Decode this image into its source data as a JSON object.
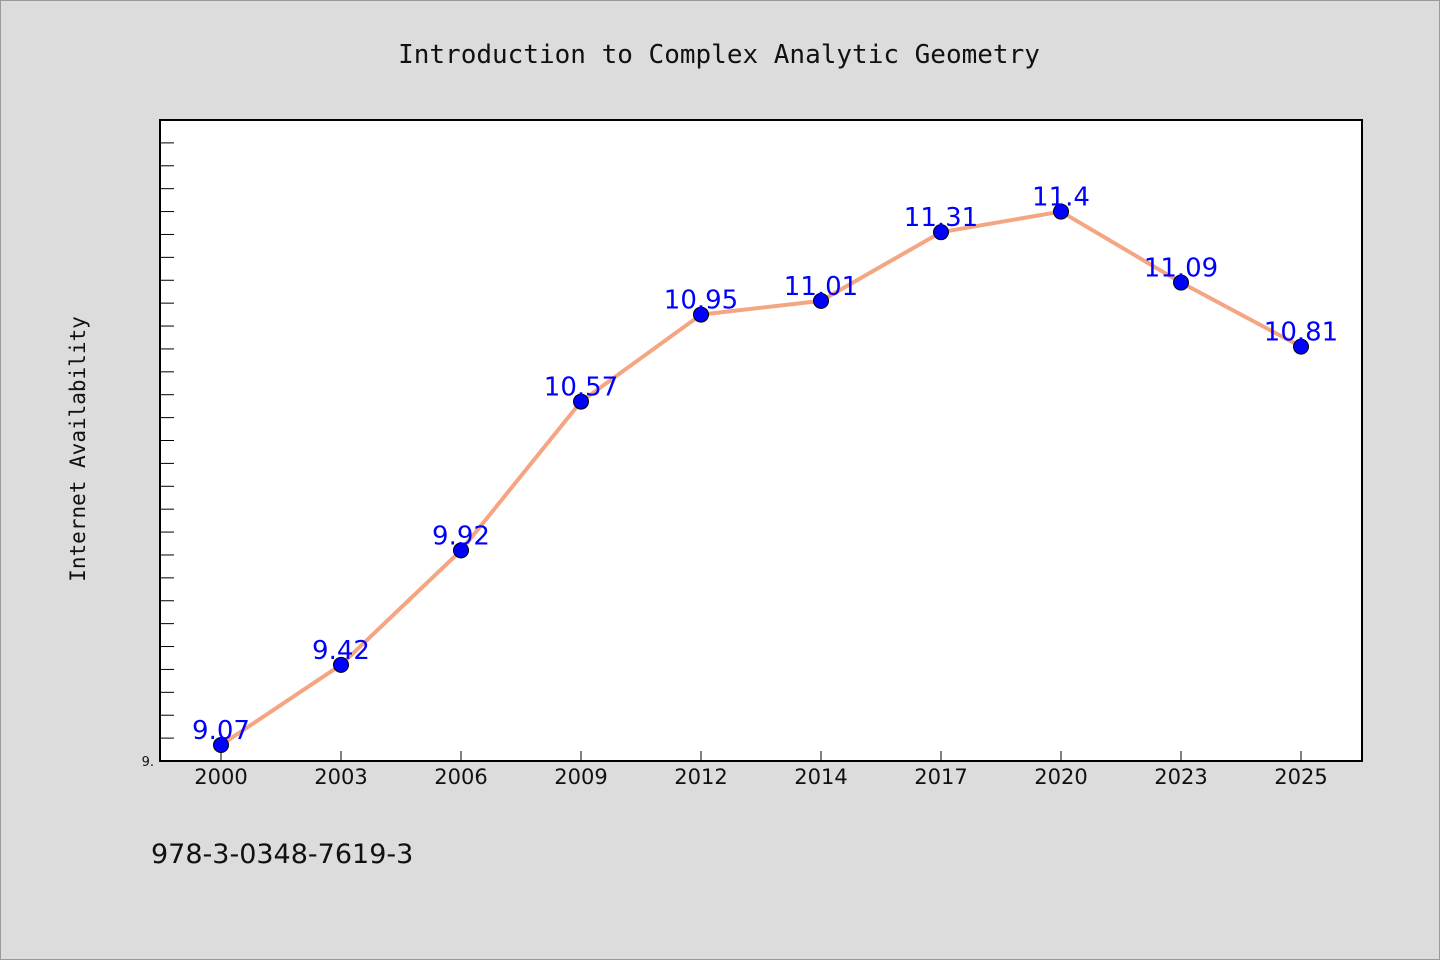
{
  "chart_data": {
    "type": "line",
    "title": "Introduction to Complex Analytic Geometry",
    "xlabel": "",
    "ylabel": "Internet Availability",
    "categories": [
      "2000",
      "2003",
      "2006",
      "2009",
      "2012",
      "2014",
      "2017",
      "2020",
      "2023",
      "2025"
    ],
    "series": [
      {
        "values": [
          9.07,
          9.42,
          9.92,
          10.57,
          10.95,
          11.01,
          11.31,
          11.4,
          11.09,
          10.81
        ]
      }
    ],
    "data_labels": [
      "9.07",
      "9.42",
      "9.92",
      "10.57",
      "10.95",
      "11.01",
      "11.31",
      "11.4",
      "11.09",
      "10.81"
    ],
    "ylim": [
      9.0,
      11.8
    ],
    "ytick_label": "9.",
    "grid": false,
    "legend": "none"
  },
  "footer": {
    "isbn": "978-3-0348-7619-3"
  },
  "colors": {
    "background": "#dcdcdc",
    "plot_background": "#ffffff",
    "line": "#f4a582",
    "marker": "#0000ff",
    "data_label": "#0000ff",
    "axis": "#000000"
  }
}
